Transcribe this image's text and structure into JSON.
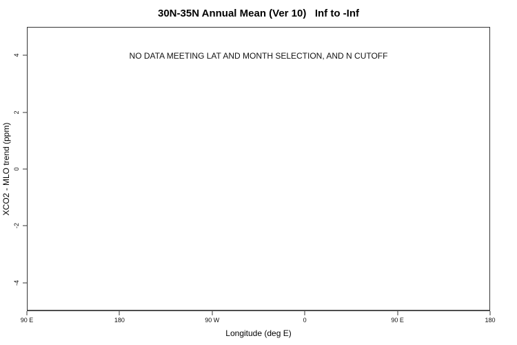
{
  "figure": {
    "background": "#ffffff"
  },
  "chart_data": {
    "type": "scatter",
    "title": "30N-35N Annual Mean (Ver 10)   Inf to -Inf",
    "xlabel": "Longitude (deg E)",
    "ylabel": "XCO2 - MLO trend (ppm)",
    "xlim": [
      90,
      540
    ],
    "ylim": [
      -5,
      5
    ],
    "x_ticks": [
      {
        "label": "90 E",
        "value": 90
      },
      {
        "label": "180",
        "value": 180
      },
      {
        "label": "90 W",
        "value": 270
      },
      {
        "label": "0",
        "value": 360
      },
      {
        "label": "90 E",
        "value": 450
      },
      {
        "label": "180",
        "value": 540
      }
    ],
    "y_ticks": [
      {
        "label": "-4",
        "value": -4
      },
      {
        "label": "-2",
        "value": -2
      },
      {
        "label": "0",
        "value": 0
      },
      {
        "label": "2",
        "value": 2
      },
      {
        "label": "4",
        "value": 4
      }
    ],
    "series": [],
    "annotation": {
      "text": "NO DATA MEETING LAT AND MONTH SELECTION, AND N CUTOFF",
      "x_frac": 0.5,
      "y_value": 4
    },
    "grid": false,
    "legend": false,
    "frame": true
  },
  "colors": {
    "text": "#000000",
    "frame": "#333333",
    "axis_bottom": "#4d4d4d",
    "tick": "#333333"
  }
}
